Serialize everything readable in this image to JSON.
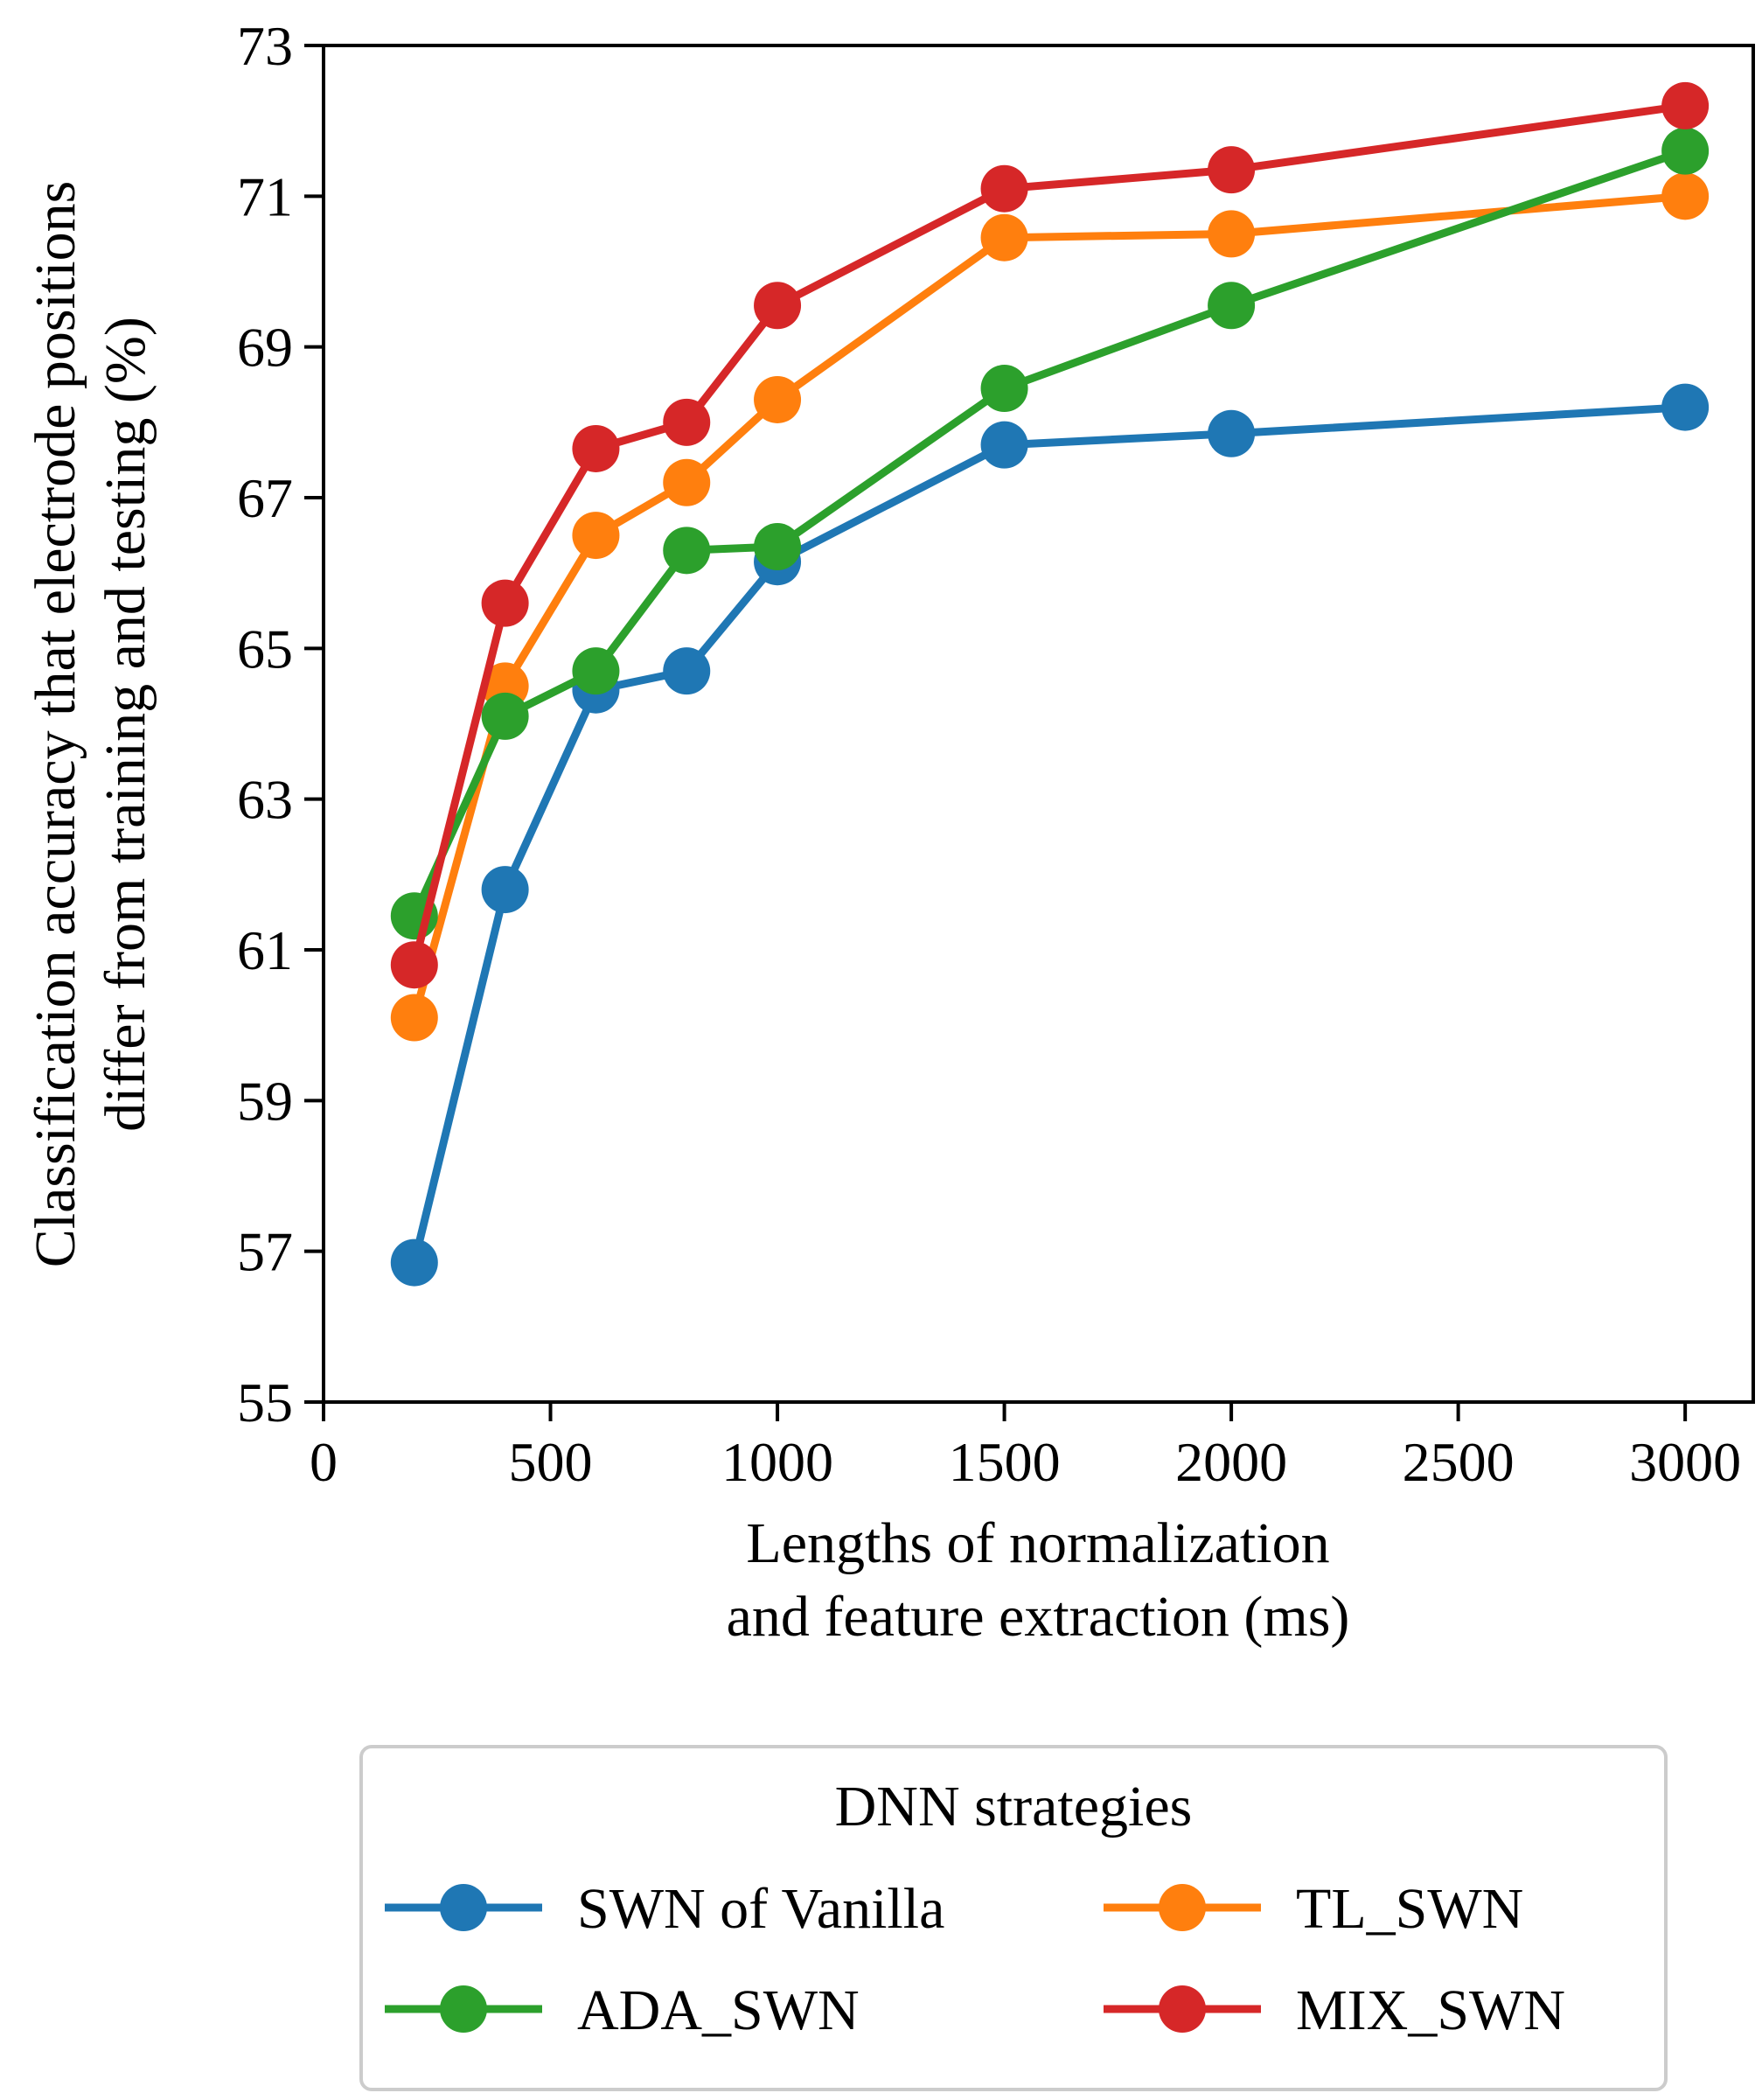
{
  "chart_data": {
    "type": "line",
    "title": "",
    "xlabel_lines": [
      "Lengths of normalization",
      "and feature extraction (ms)"
    ],
    "ylabel_lines": [
      "Classification accuracy that electrode positions",
      "differ from training and testing (%)"
    ],
    "xlim": [
      0,
      3150
    ],
    "ylim": [
      55,
      73
    ],
    "xticks": [
      0,
      500,
      1000,
      1500,
      2000,
      2500,
      3000
    ],
    "yticks": [
      55,
      57,
      59,
      61,
      63,
      65,
      67,
      69,
      71,
      73
    ],
    "x": [
      200,
      400,
      600,
      800,
      1000,
      1500,
      2000,
      3000
    ],
    "grid": false,
    "legend": {
      "title": "DNN strategies",
      "position": "below-center",
      "columns": 2
    },
    "series": [
      {
        "name": "SWN of Vanilla",
        "color": "#1f77b4",
        "values": [
          56.85,
          61.8,
          64.45,
          64.7,
          66.15,
          67.7,
          67.85,
          68.2
        ]
      },
      {
        "name": "TL_SWN",
        "color": "#ff7f0e",
        "values": [
          60.1,
          64.5,
          66.5,
          67.2,
          68.3,
          70.45,
          70.5,
          71.0
        ]
      },
      {
        "name": "ADA_SWN",
        "color": "#2ca02c",
        "values": [
          61.45,
          64.1,
          64.7,
          66.3,
          66.35,
          68.45,
          69.55,
          71.6
        ]
      },
      {
        "name": "MIX_SWN",
        "color": "#d62728",
        "values": [
          60.8,
          65.6,
          67.65,
          68.0,
          69.55,
          71.1,
          71.35,
          72.2
        ]
      }
    ]
  }
}
